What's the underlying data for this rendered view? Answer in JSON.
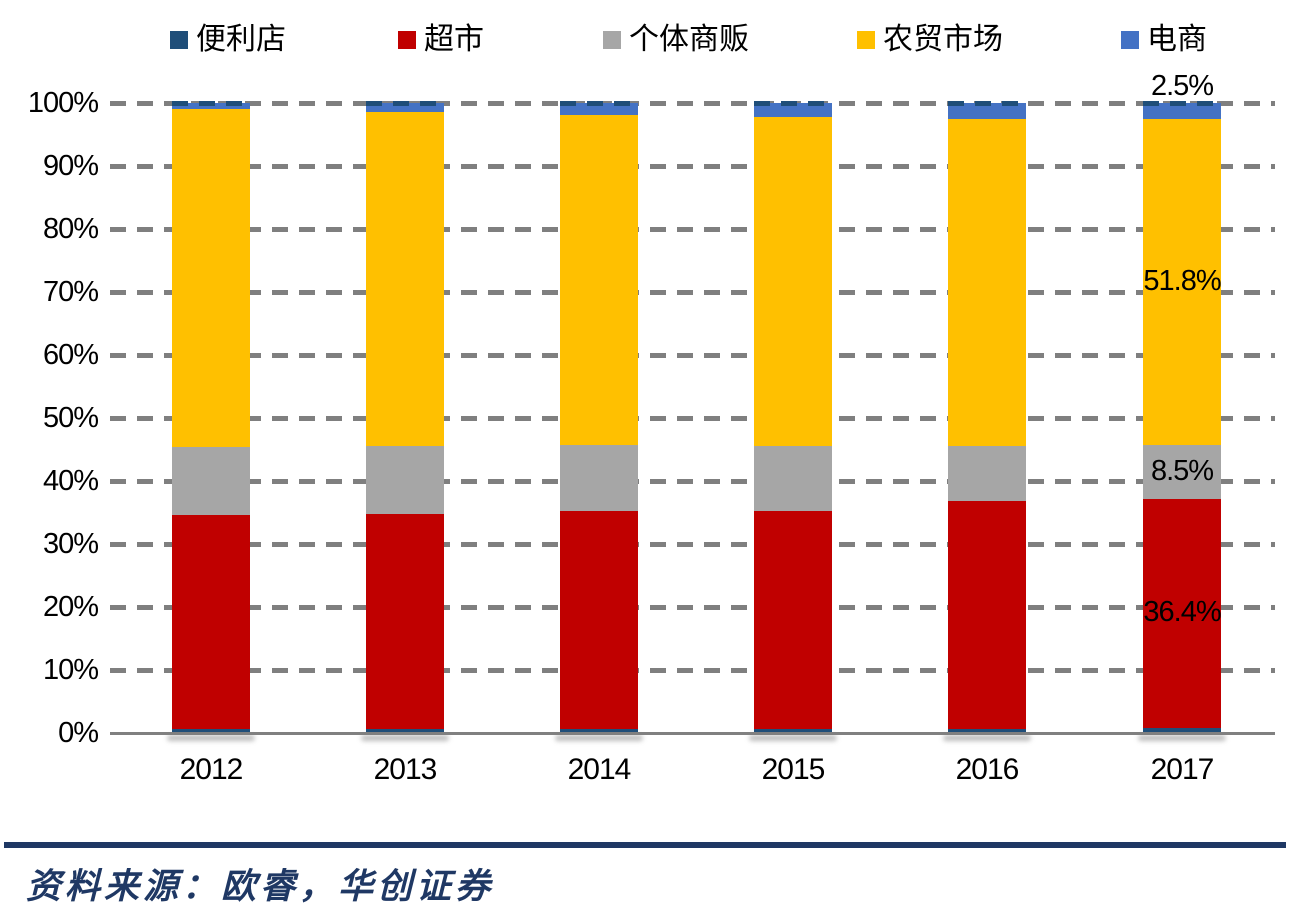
{
  "chart_data": {
    "type": "bar",
    "subtype": "stacked-100-percent",
    "categories": [
      "2012",
      "2013",
      "2014",
      "2015",
      "2016",
      "2017"
    ],
    "series": [
      {
        "name": "便利店",
        "color": "#1F4E79",
        "values": [
          0.7,
          0.7,
          0.7,
          0.7,
          0.7,
          0.8
        ]
      },
      {
        "name": "超市",
        "color": "#C00000",
        "values": [
          33.9,
          34.1,
          34.5,
          34.5,
          36.2,
          36.4
        ]
      },
      {
        "name": "个体商贩",
        "color": "#A6A6A6",
        "values": [
          10.8,
          10.7,
          10.5,
          10.4,
          8.6,
          8.5
        ]
      },
      {
        "name": "农贸市场",
        "color": "#FFC000",
        "values": [
          53.6,
          53.1,
          52.4,
          52.2,
          52.0,
          51.8
        ]
      },
      {
        "name": "电商",
        "color": "#4472C4",
        "values": [
          1.0,
          1.4,
          1.9,
          2.2,
          2.5,
          2.5
        ]
      }
    ],
    "title": "",
    "xlabel": "",
    "ylabel": "",
    "ylim": [
      0,
      100
    ],
    "y_ticks": [
      "0%",
      "10%",
      "20%",
      "30%",
      "40%",
      "50%",
      "60%",
      "70%",
      "80%",
      "90%",
      "100%"
    ],
    "grid": "dashed-horizontal",
    "gridline_color": "#7f7f7f",
    "legend_position": "top",
    "annotations": [
      {
        "text": "2.5%",
        "series": "电商",
        "category": "2017",
        "placement": "above-bar"
      },
      {
        "text": "51.8%",
        "series": "农贸市场",
        "category": "2017",
        "placement": "segment-center"
      },
      {
        "text": "8.5%",
        "series": "个体商贩",
        "category": "2017",
        "placement": "segment-center"
      },
      {
        "text": "36.4%",
        "series": "超市",
        "category": "2017",
        "placement": "segment-center"
      }
    ]
  },
  "source_note": {
    "text": "资料来源：欧睿，华创证券"
  },
  "colors": {
    "axis_line": "#808080",
    "divider_rule": "#1F3864",
    "source_text": "#1F3864",
    "label_text": "#000000"
  }
}
